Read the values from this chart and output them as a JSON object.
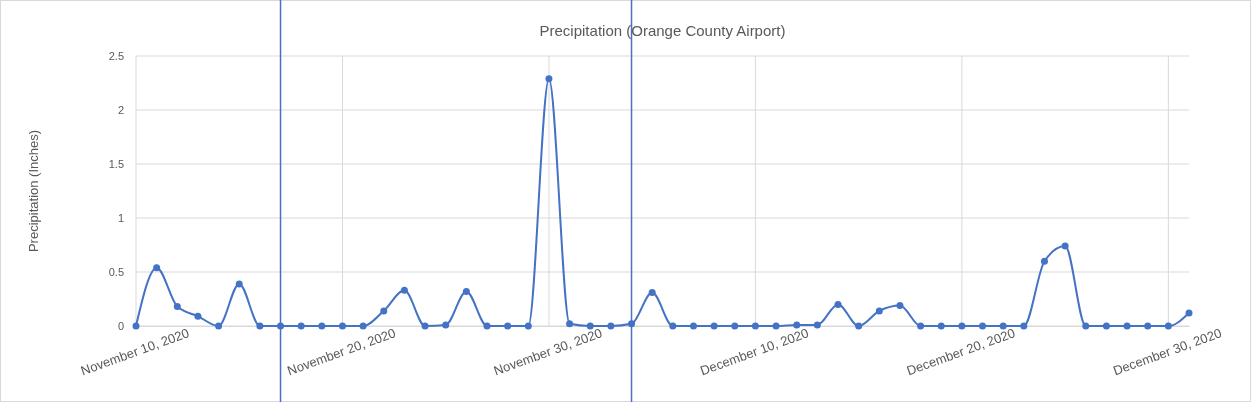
{
  "chart_data": {
    "type": "line",
    "title": "Precipitation (Orange County Airport)",
    "ylabel": "Precipitation (Inches)",
    "x": [
      "2020-11-10",
      "2020-11-11",
      "2020-11-12",
      "2020-11-13",
      "2020-11-14",
      "2020-11-15",
      "2020-11-16",
      "2020-11-17",
      "2020-11-18",
      "2020-11-19",
      "2020-11-20",
      "2020-11-21",
      "2020-11-22",
      "2020-11-23",
      "2020-11-24",
      "2020-11-25",
      "2020-11-26",
      "2020-11-27",
      "2020-11-28",
      "2020-11-29",
      "2020-11-30",
      "2020-12-01",
      "2020-12-02",
      "2020-12-03",
      "2020-12-04",
      "2020-12-05",
      "2020-12-06",
      "2020-12-07",
      "2020-12-08",
      "2020-12-09",
      "2020-12-10",
      "2020-12-11",
      "2020-12-12",
      "2020-12-13",
      "2020-12-14",
      "2020-12-15",
      "2020-12-16",
      "2020-12-17",
      "2020-12-18",
      "2020-12-19",
      "2020-12-20",
      "2020-12-21",
      "2020-12-22",
      "2020-12-23",
      "2020-12-24",
      "2020-12-25",
      "2020-12-26",
      "2020-12-27",
      "2020-12-28",
      "2020-12-29",
      "2020-12-30",
      "2020-12-31"
    ],
    "series": [
      {
        "color": "#4472c4",
        "values": [
          0,
          0.54,
          0.18,
          0.09,
          0,
          0.39,
          0,
          0,
          0,
          0,
          0,
          0,
          0.14,
          0.33,
          0,
          0.01,
          0.32,
          0,
          0,
          0,
          2.29,
          0.02,
          0,
          0,
          0.02,
          0.31,
          0,
          0,
          0,
          0,
          0,
          0,
          0.01,
          0.01,
          0.2,
          0,
          0.14,
          0.19,
          0,
          0,
          0,
          0,
          0,
          0,
          0.6,
          0.74,
          0,
          0,
          0,
          0,
          0,
          0.12
        ]
      }
    ],
    "xlim": [
      "2020-11-10",
      "2020-12-31"
    ],
    "xticks": [
      {
        "value": "2020-11-10",
        "label": "November 10, 2020"
      },
      {
        "value": "2020-11-20",
        "label": "November 20, 2020"
      },
      {
        "value": "2020-11-30",
        "label": "November 30, 2020"
      },
      {
        "value": "2020-12-10",
        "label": "December 10, 2020"
      },
      {
        "value": "2020-12-20",
        "label": "December 20, 2020"
      },
      {
        "value": "2020-12-30",
        "label": "December 30, 2020"
      }
    ],
    "ylim": [
      0,
      2.5
    ],
    "yticks": [
      0,
      0.5,
      1,
      1.5,
      2,
      2.5
    ],
    "ref_lines": [
      {
        "axis": "x",
        "value": "2020-11-17",
        "color": "#4472c4"
      },
      {
        "axis": "x",
        "value": "2020-12-04",
        "color": "#4472c4"
      }
    ],
    "grid": true,
    "marker": "circle",
    "line_style": "solid"
  }
}
